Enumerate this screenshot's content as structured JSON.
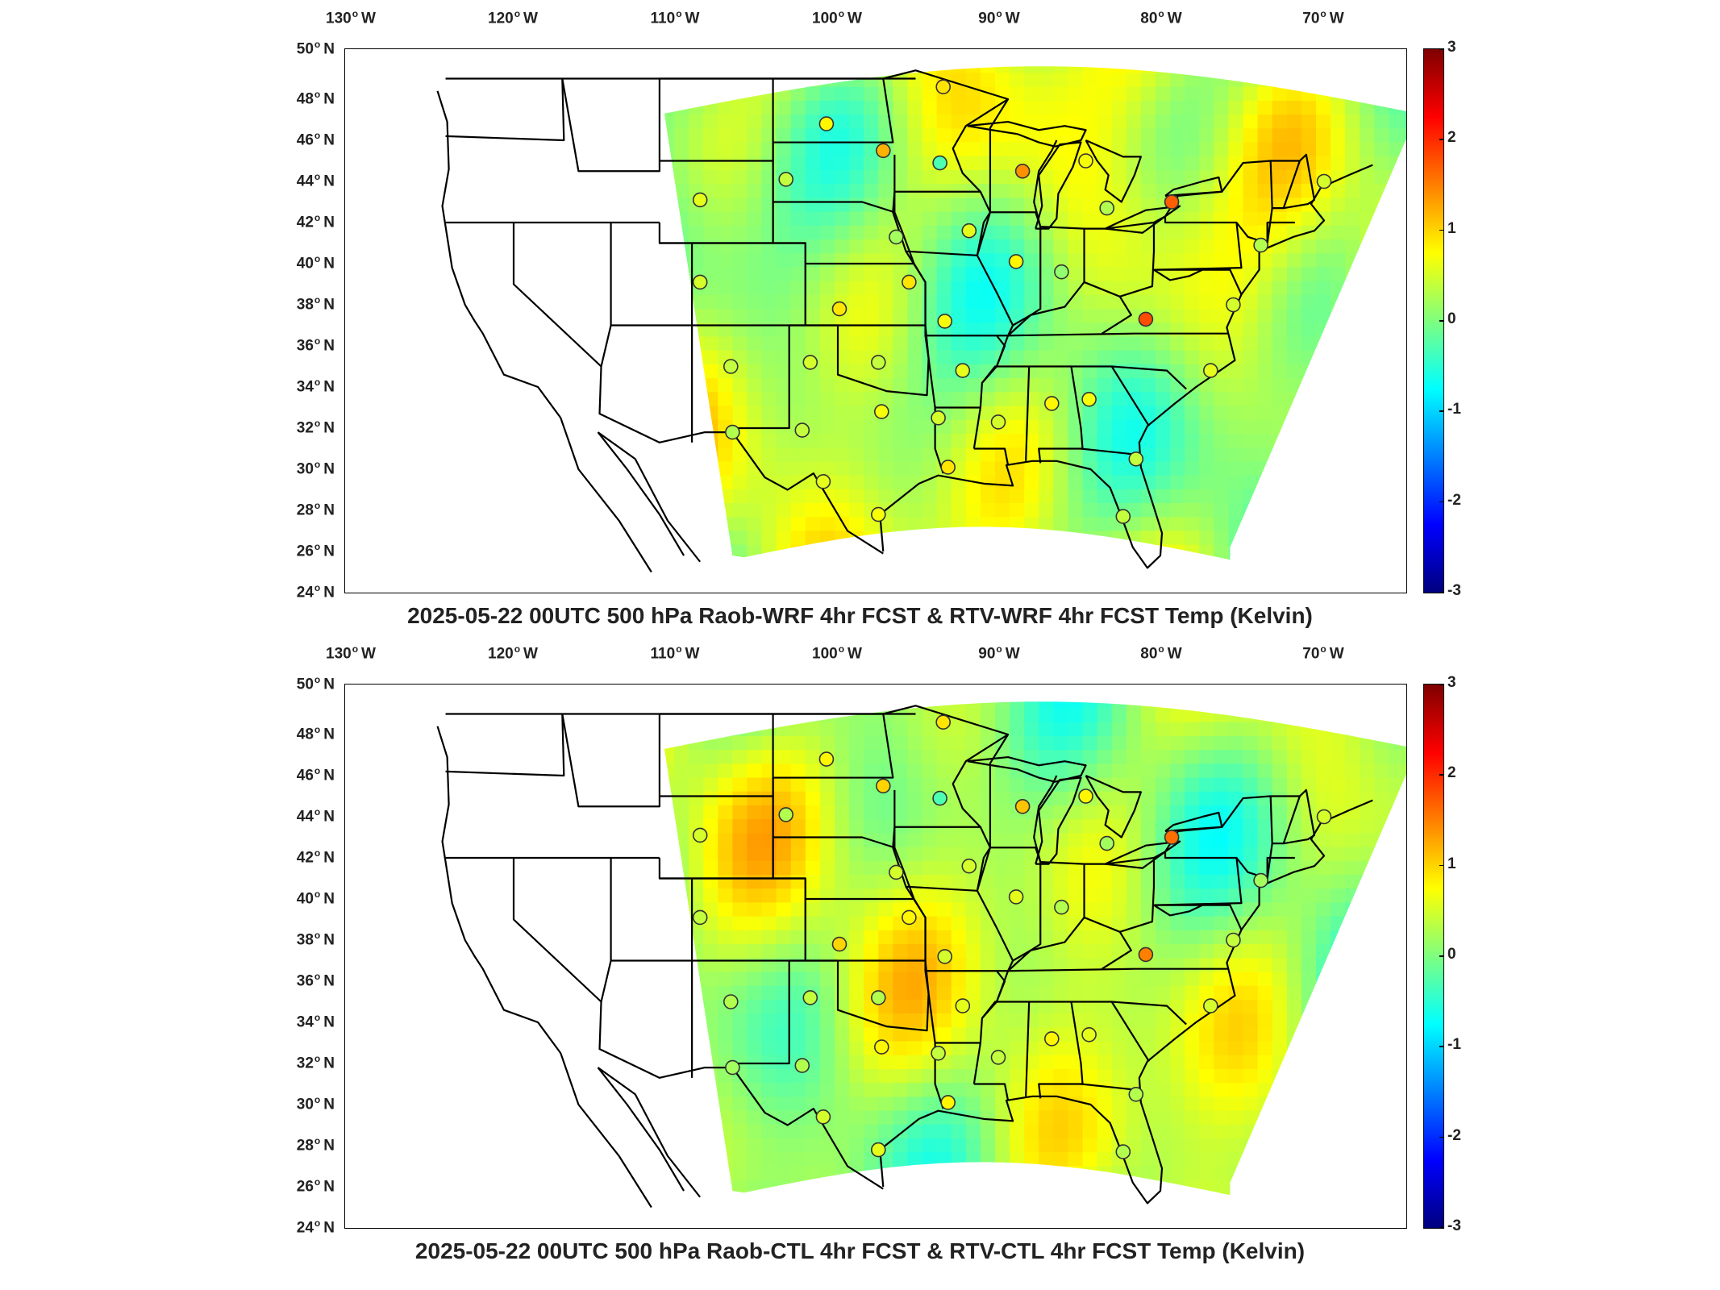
{
  "colors": {
    "land_outline": "#000000",
    "no_data": "#ffffff",
    "station_edge": "#333333"
  },
  "colorbar": {
    "colormap": "jet",
    "range": [
      -3,
      3
    ],
    "ticks": [
      "3",
      "2",
      "1",
      "0",
      "-1",
      "-2",
      "-3"
    ]
  },
  "longitude_labels": [
    "130",
    "120",
    "110",
    "100",
    "90",
    "80",
    "70"
  ],
  "longitude_suffix": "W",
  "latitude_labels": [
    "50",
    "48",
    "46",
    "44",
    "42",
    "40",
    "38",
    "36",
    "34",
    "32",
    "30",
    "28",
    "26",
    "24"
  ],
  "latitude_suffix": "N",
  "panels": [
    {
      "title": "2025-05-22 00UTC 500 hPa Raob-WRF 4hr FCST & RTV-WRF 4hr FCST Temp (Kelvin)",
      "stations": [
        {
          "lon": -93.5,
          "lat": 48.6,
          "value": 0.9
        },
        {
          "lon": -100.7,
          "lat": 46.8,
          "value": 0.8
        },
        {
          "lon": -97.2,
          "lat": 45.5,
          "value": 1.2
        },
        {
          "lon": -93.7,
          "lat": 44.9,
          "value": -0.3
        },
        {
          "lon": -103.2,
          "lat": 44.1,
          "value": 0.4
        },
        {
          "lon": -108.5,
          "lat": 43.1,
          "value": 0.6
        },
        {
          "lon": -88.6,
          "lat": 44.5,
          "value": 1.4
        },
        {
          "lon": -84.7,
          "lat": 45.0,
          "value": 0.7
        },
        {
          "lon": -83.4,
          "lat": 42.7,
          "value": 0.3
        },
        {
          "lon": -79.4,
          "lat": 43.0,
          "value": 1.7
        },
        {
          "lon": -70.0,
          "lat": 44.0,
          "value": 0.5
        },
        {
          "lon": -96.4,
          "lat": 41.3,
          "value": 0.2
        },
        {
          "lon": -91.9,
          "lat": 41.6,
          "value": 0.6
        },
        {
          "lon": -89.0,
          "lat": 40.1,
          "value": 0.8
        },
        {
          "lon": -86.2,
          "lat": 39.6,
          "value": 0.1
        },
        {
          "lon": -108.5,
          "lat": 39.1,
          "value": 0.5
        },
        {
          "lon": -95.6,
          "lat": 39.1,
          "value": 0.9
        },
        {
          "lon": -99.9,
          "lat": 37.8,
          "value": 0.9
        },
        {
          "lon": -93.4,
          "lat": 37.2,
          "value": 0.7
        },
        {
          "lon": -81.0,
          "lat": 37.3,
          "value": 1.8
        },
        {
          "lon": -73.9,
          "lat": 40.9,
          "value": 0.3
        },
        {
          "lon": -75.6,
          "lat": 38.0,
          "value": 0.5
        },
        {
          "lon": -106.6,
          "lat": 35.0,
          "value": 0.4
        },
        {
          "lon": -101.7,
          "lat": 35.2,
          "value": 0.5
        },
        {
          "lon": -97.5,
          "lat": 35.2,
          "value": 0.4
        },
        {
          "lon": -92.3,
          "lat": 34.8,
          "value": 0.6
        },
        {
          "lon": -86.8,
          "lat": 33.2,
          "value": 0.8
        },
        {
          "lon": -84.5,
          "lat": 33.4,
          "value": 0.7
        },
        {
          "lon": -77.0,
          "lat": 34.8,
          "value": 0.6
        },
        {
          "lon": -106.5,
          "lat": 31.8,
          "value": 0.3
        },
        {
          "lon": -102.2,
          "lat": 31.9,
          "value": 0.4
        },
        {
          "lon": -97.3,
          "lat": 32.8,
          "value": 0.7
        },
        {
          "lon": -93.8,
          "lat": 32.5,
          "value": 0.5
        },
        {
          "lon": -90.1,
          "lat": 32.3,
          "value": 0.5
        },
        {
          "lon": -93.2,
          "lat": 30.1,
          "value": 0.9
        },
        {
          "lon": -81.6,
          "lat": 30.5,
          "value": 0.4
        },
        {
          "lon": -100.9,
          "lat": 29.4,
          "value": 0.6
        },
        {
          "lon": -97.5,
          "lat": 27.8,
          "value": 0.7
        },
        {
          "lon": -82.4,
          "lat": 27.7,
          "value": 0.4
        }
      ]
    },
    {
      "title": "2025-05-22 00UTC 500 hPa Raob-CTL 4hr FCST & RTV-CTL 4hr FCST Temp (Kelvin)",
      "stations": [
        {
          "lon": -93.5,
          "lat": 48.6,
          "value": 0.9
        },
        {
          "lon": -100.7,
          "lat": 46.8,
          "value": 0.8
        },
        {
          "lon": -97.2,
          "lat": 45.5,
          "value": 1.0
        },
        {
          "lon": -93.7,
          "lat": 44.9,
          "value": -0.3
        },
        {
          "lon": -103.2,
          "lat": 44.1,
          "value": 0.3
        },
        {
          "lon": -108.5,
          "lat": 43.1,
          "value": 0.5
        },
        {
          "lon": -88.6,
          "lat": 44.5,
          "value": 1.1
        },
        {
          "lon": -84.7,
          "lat": 45.0,
          "value": 0.8
        },
        {
          "lon": -83.4,
          "lat": 42.7,
          "value": 0.2
        },
        {
          "lon": -79.4,
          "lat": 43.0,
          "value": 1.6
        },
        {
          "lon": -70.0,
          "lat": 44.0,
          "value": 0.5
        },
        {
          "lon": -96.4,
          "lat": 41.3,
          "value": 0.5
        },
        {
          "lon": -91.9,
          "lat": 41.6,
          "value": 0.5
        },
        {
          "lon": -89.0,
          "lat": 40.1,
          "value": 0.6
        },
        {
          "lon": -86.2,
          "lat": 39.6,
          "value": 0.3
        },
        {
          "lon": -108.5,
          "lat": 39.1,
          "value": 0.4
        },
        {
          "lon": -95.6,
          "lat": 39.1,
          "value": 0.8
        },
        {
          "lon": -99.9,
          "lat": 37.8,
          "value": 1.0
        },
        {
          "lon": -93.4,
          "lat": 37.2,
          "value": 0.5
        },
        {
          "lon": -81.0,
          "lat": 37.3,
          "value": 1.5
        },
        {
          "lon": -73.9,
          "lat": 40.9,
          "value": 0.2
        },
        {
          "lon": -75.6,
          "lat": 38.0,
          "value": 0.4
        },
        {
          "lon": -106.6,
          "lat": 35.0,
          "value": 0.3
        },
        {
          "lon": -101.7,
          "lat": 35.2,
          "value": 0.4
        },
        {
          "lon": -97.5,
          "lat": 35.2,
          "value": 0.3
        },
        {
          "lon": -92.3,
          "lat": 34.8,
          "value": 0.6
        },
        {
          "lon": -86.8,
          "lat": 33.2,
          "value": 0.8
        },
        {
          "lon": -84.5,
          "lat": 33.4,
          "value": 0.6
        },
        {
          "lon": -77.0,
          "lat": 34.8,
          "value": 0.5
        },
        {
          "lon": -106.5,
          "lat": 31.8,
          "value": 0.2
        },
        {
          "lon": -102.2,
          "lat": 31.9,
          "value": 0.3
        },
        {
          "lon": -97.3,
          "lat": 32.8,
          "value": 0.8
        },
        {
          "lon": -93.8,
          "lat": 32.5,
          "value": 0.4
        },
        {
          "lon": -90.1,
          "lat": 32.3,
          "value": 0.4
        },
        {
          "lon": -93.2,
          "lat": 30.1,
          "value": 0.8
        },
        {
          "lon": -81.6,
          "lat": 30.5,
          "value": 0.3
        },
        {
          "lon": -100.9,
          "lat": 29.4,
          "value": 0.5
        },
        {
          "lon": -97.5,
          "lat": 27.8,
          "value": 0.6
        },
        {
          "lon": -82.4,
          "lat": 27.7,
          "value": 0.3
        }
      ]
    }
  ]
}
